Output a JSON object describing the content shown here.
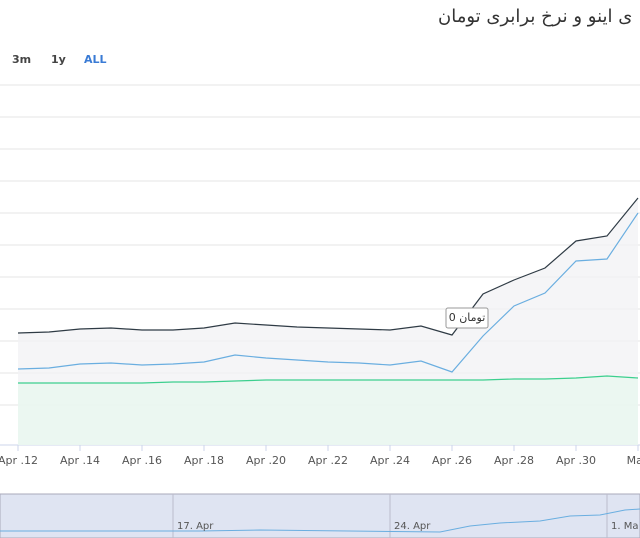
{
  "chart_data": {
    "type": "line",
    "title": "ی اینو و نرخ برابری تومان",
    "range_buttons": [
      "3m",
      "1y",
      "ALL"
    ],
    "categories": [
      "Apr .12",
      null,
      "Apr .14",
      null,
      "Apr .16",
      null,
      "Apr .18",
      null,
      "Apr .20",
      null,
      "Apr .22",
      null,
      "Apr .24",
      null,
      "Apr .26",
      null,
      "Apr .28",
      null,
      "Apr .30",
      null,
      "May"
    ],
    "series": [
      {
        "color": "#2f3b45",
        "values": [
          112,
          113,
          116,
          117,
          115,
          115,
          117,
          122,
          120,
          118,
          117,
          116,
          115,
          119,
          110,
          151,
          165,
          177,
          204,
          209,
          247
        ]
      },
      {
        "color": "#6aaee0",
        "values": [
          76,
          77,
          81,
          82,
          80,
          81,
          83,
          90,
          87,
          85,
          83,
          82,
          80,
          84,
          73,
          109,
          139,
          152,
          184,
          186,
          232
        ]
      },
      {
        "color": "#3ccf8e",
        "values": [
          62,
          62,
          62,
          62,
          62,
          63,
          63,
          64,
          65,
          65,
          65,
          65,
          65,
          65,
          65,
          65,
          66,
          66,
          67,
          69,
          67
        ]
      }
    ],
    "ylim": [
      0,
      360
    ],
    "yticks": [
      40,
      72,
      104,
      136,
      168,
      200,
      232,
      264,
      296,
      328,
      360
    ],
    "grid": true,
    "tooltip": "0 تومان",
    "navigator_labels": [
      "17. Apr",
      "24. Apr",
      "1. Ma"
    ]
  }
}
